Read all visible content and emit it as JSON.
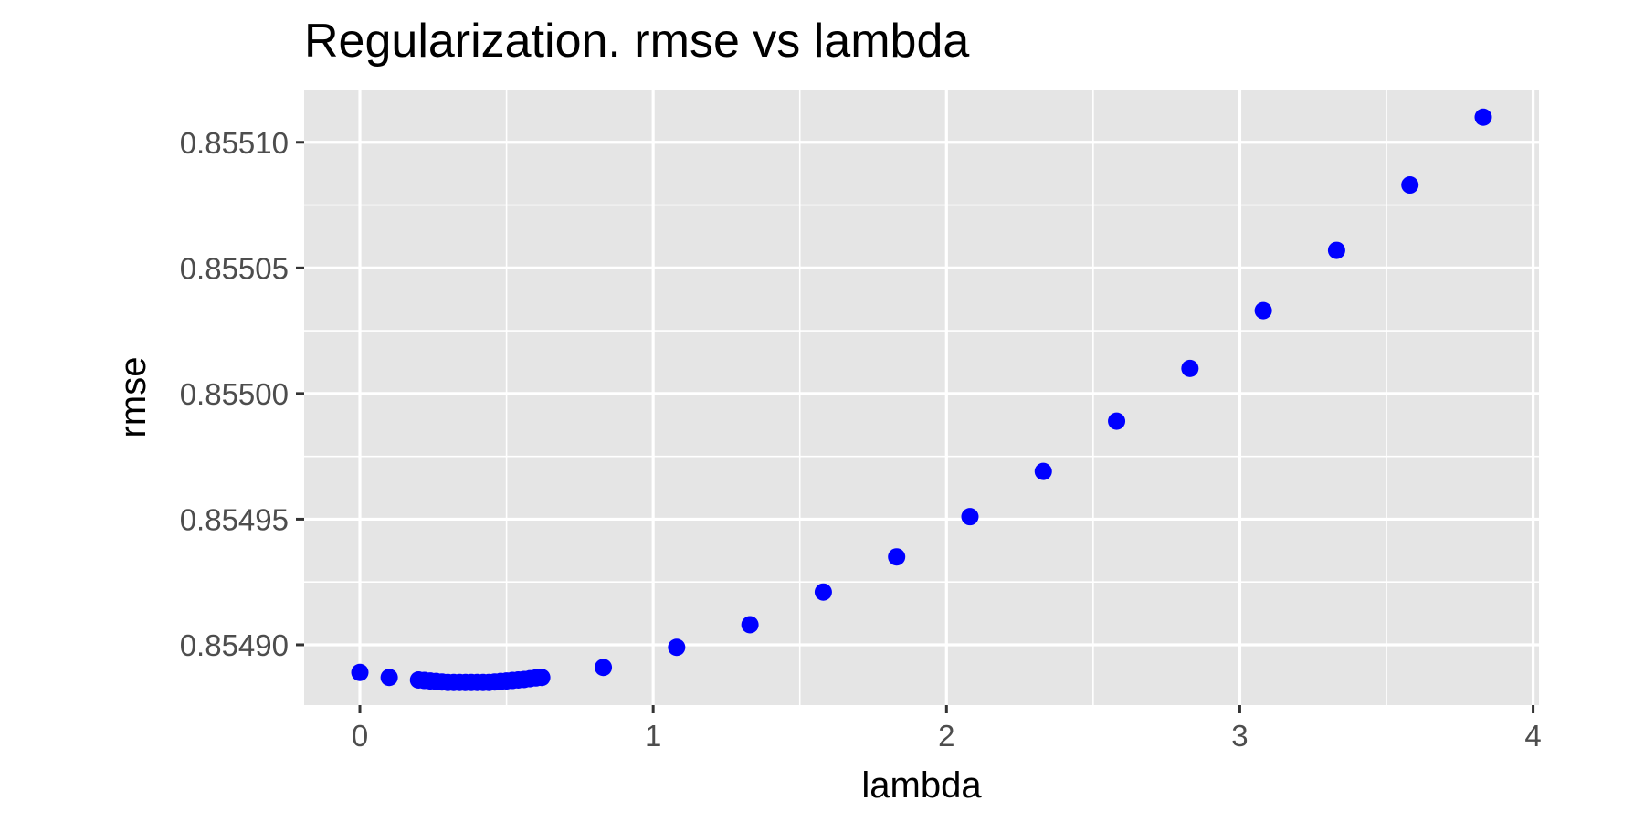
{
  "chart_data": {
    "type": "scatter",
    "title": "Regularization. rmse vs lambda",
    "xlabel": "lambda",
    "ylabel": "rmse",
    "xlim": [
      -0.19,
      4.02
    ],
    "ylim": [
      0.854876,
      0.855121
    ],
    "x_ticks": [
      0,
      1,
      2,
      3,
      4
    ],
    "x_tick_labels": [
      "0",
      "1",
      "2",
      "3",
      "4"
    ],
    "y_ticks": [
      0.8549,
      0.85495,
      0.855,
      0.85505,
      0.8551
    ],
    "y_tick_labels": [
      "0.85490",
      "0.85495",
      "0.85500",
      "0.85505",
      "0.85510"
    ],
    "grid": true,
    "legend": "none",
    "point_color": "#0000ff",
    "panel_background": "#e5e5e5",
    "points": [
      {
        "x": 0.0,
        "y": 0.854889
      },
      {
        "x": 0.1,
        "y": 0.854887
      },
      {
        "x": 0.2,
        "y": 0.854886
      },
      {
        "x": 0.22,
        "y": 0.8548858
      },
      {
        "x": 0.24,
        "y": 0.8548856
      },
      {
        "x": 0.26,
        "y": 0.8548854
      },
      {
        "x": 0.28,
        "y": 0.8548852
      },
      {
        "x": 0.3,
        "y": 0.854885
      },
      {
        "x": 0.32,
        "y": 0.854885
      },
      {
        "x": 0.34,
        "y": 0.854885
      },
      {
        "x": 0.36,
        "y": 0.854885
      },
      {
        "x": 0.38,
        "y": 0.854885
      },
      {
        "x": 0.4,
        "y": 0.854885
      },
      {
        "x": 0.42,
        "y": 0.854885
      },
      {
        "x": 0.44,
        "y": 0.854885
      },
      {
        "x": 0.46,
        "y": 0.8548852
      },
      {
        "x": 0.48,
        "y": 0.8548854
      },
      {
        "x": 0.5,
        "y": 0.8548856
      },
      {
        "x": 0.52,
        "y": 0.8548858
      },
      {
        "x": 0.54,
        "y": 0.854886
      },
      {
        "x": 0.56,
        "y": 0.8548862
      },
      {
        "x": 0.58,
        "y": 0.8548865
      },
      {
        "x": 0.6,
        "y": 0.8548868
      },
      {
        "x": 0.62,
        "y": 0.854887
      },
      {
        "x": 0.83,
        "y": 0.854891
      },
      {
        "x": 1.08,
        "y": 0.854899
      },
      {
        "x": 1.33,
        "y": 0.854908
      },
      {
        "x": 1.58,
        "y": 0.854921
      },
      {
        "x": 1.83,
        "y": 0.854935
      },
      {
        "x": 2.08,
        "y": 0.854951
      },
      {
        "x": 2.33,
        "y": 0.854969
      },
      {
        "x": 2.58,
        "y": 0.854989
      },
      {
        "x": 2.83,
        "y": 0.85501
      },
      {
        "x": 3.08,
        "y": 0.855033
      },
      {
        "x": 3.33,
        "y": 0.855057
      },
      {
        "x": 3.58,
        "y": 0.855083
      },
      {
        "x": 3.83,
        "y": 0.85511
      }
    ]
  }
}
